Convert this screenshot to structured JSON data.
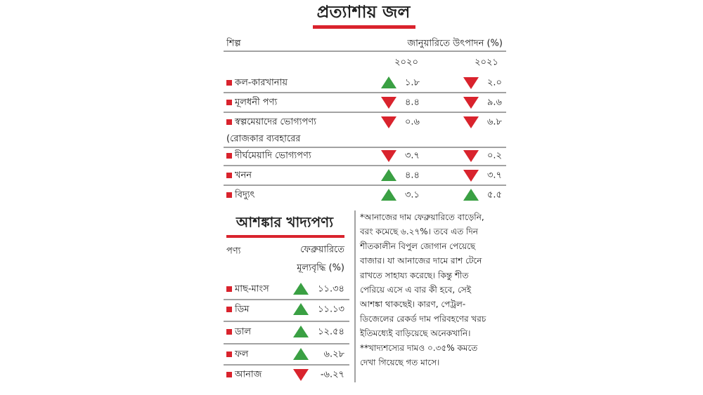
{
  "title": "প্রত্যাশায় জল",
  "production": {
    "header": {
      "industry": "শিল্প",
      "measure": "জানুয়ারিতে উৎপাদন (%)",
      "years": [
        "২০২০",
        "২০২১"
      ]
    },
    "rows": [
      {
        "name": [
          "কল-কারখানায়"
        ],
        "cells": [
          {
            "trend": "up",
            "value": "১.৮"
          },
          {
            "trend": "down",
            "value": "২.০"
          }
        ]
      },
      {
        "name": [
          "মূলধনী পণ্য"
        ],
        "cells": [
          {
            "trend": "down",
            "value": "৪.৪"
          },
          {
            "trend": "down",
            "value": "৯.৬"
          }
        ]
      },
      {
        "name": [
          "স্বল্পমেয়াদের ভোগ্যপণ্য",
          "(রোজকার ব্যবহারের"
        ],
        "cells": [
          {
            "trend": "down",
            "value": "০.৬"
          },
          {
            "trend": "down",
            "value": "৬.৮"
          }
        ]
      },
      {
        "name": [
          "দীর্ঘমেয়াদি ভোগ্যপণ্য"
        ],
        "cells": [
          {
            "trend": "down",
            "value": "৩.৭"
          },
          {
            "trend": "down",
            "value": "০.২"
          }
        ]
      },
      {
        "name": [
          "খনন"
        ],
        "cells": [
          {
            "trend": "up",
            "value": "৪.৪"
          },
          {
            "trend": "down",
            "value": "৩.৭"
          }
        ]
      },
      {
        "name": [
          "বিদ্যুৎ"
        ],
        "cells": [
          {
            "trend": "up",
            "value": "৩.১"
          },
          {
            "trend": "up",
            "value": "৫.৫"
          }
        ]
      }
    ]
  },
  "food": {
    "title": "আশঙ্কার খাদ্যপণ্য",
    "header": {
      "item": "পণ্য",
      "measure": [
        "ফেব্রুয়ারিতে",
        "মূল্যবৃদ্ধি (%)"
      ]
    },
    "rows": [
      {
        "name": "মাছ-মাংস",
        "trend": "up",
        "value": "১১.৩৪"
      },
      {
        "name": "ডিম",
        "trend": "up",
        "value": "১১.১৩"
      },
      {
        "name": "ডাল",
        "trend": "up",
        "value": "১২.৫৪"
      },
      {
        "name": "ফল",
        "trend": "up",
        "value": "৬.২৮"
      },
      {
        "name": "আনাজ",
        "trend": "down",
        "value": "-৬.২৭"
      }
    ]
  },
  "note": [
    "*আনাজের দাম ফেব্রুয়ারিতে বাড়েনি,",
    "বরং কমেছে ৬.২৭%। তবে এত দিন",
    "শীতকালীন বিপুল জোগান পেয়েছে",
    "বাজার। যা আনাজের দামে রাশ টেনে",
    "রাখতে সাহায্য করেছে। কিন্তু শীত",
    "পেরিয়ে এসে এ বার কী হবে, সেই",
    "আশঙ্কা থাকছেই। কারণ, পেট্রল-",
    "ডিজেলের রেকর্ড দাম পরিবহণের খরচ",
    "ইতিমধ্যেই বাড়িয়েছে অনেকখানি।",
    "**খাদ্যশস্যের দামও ০.৩৫% কমতে",
    "দেখা গিয়েছে গত মাসে।"
  ]
}
